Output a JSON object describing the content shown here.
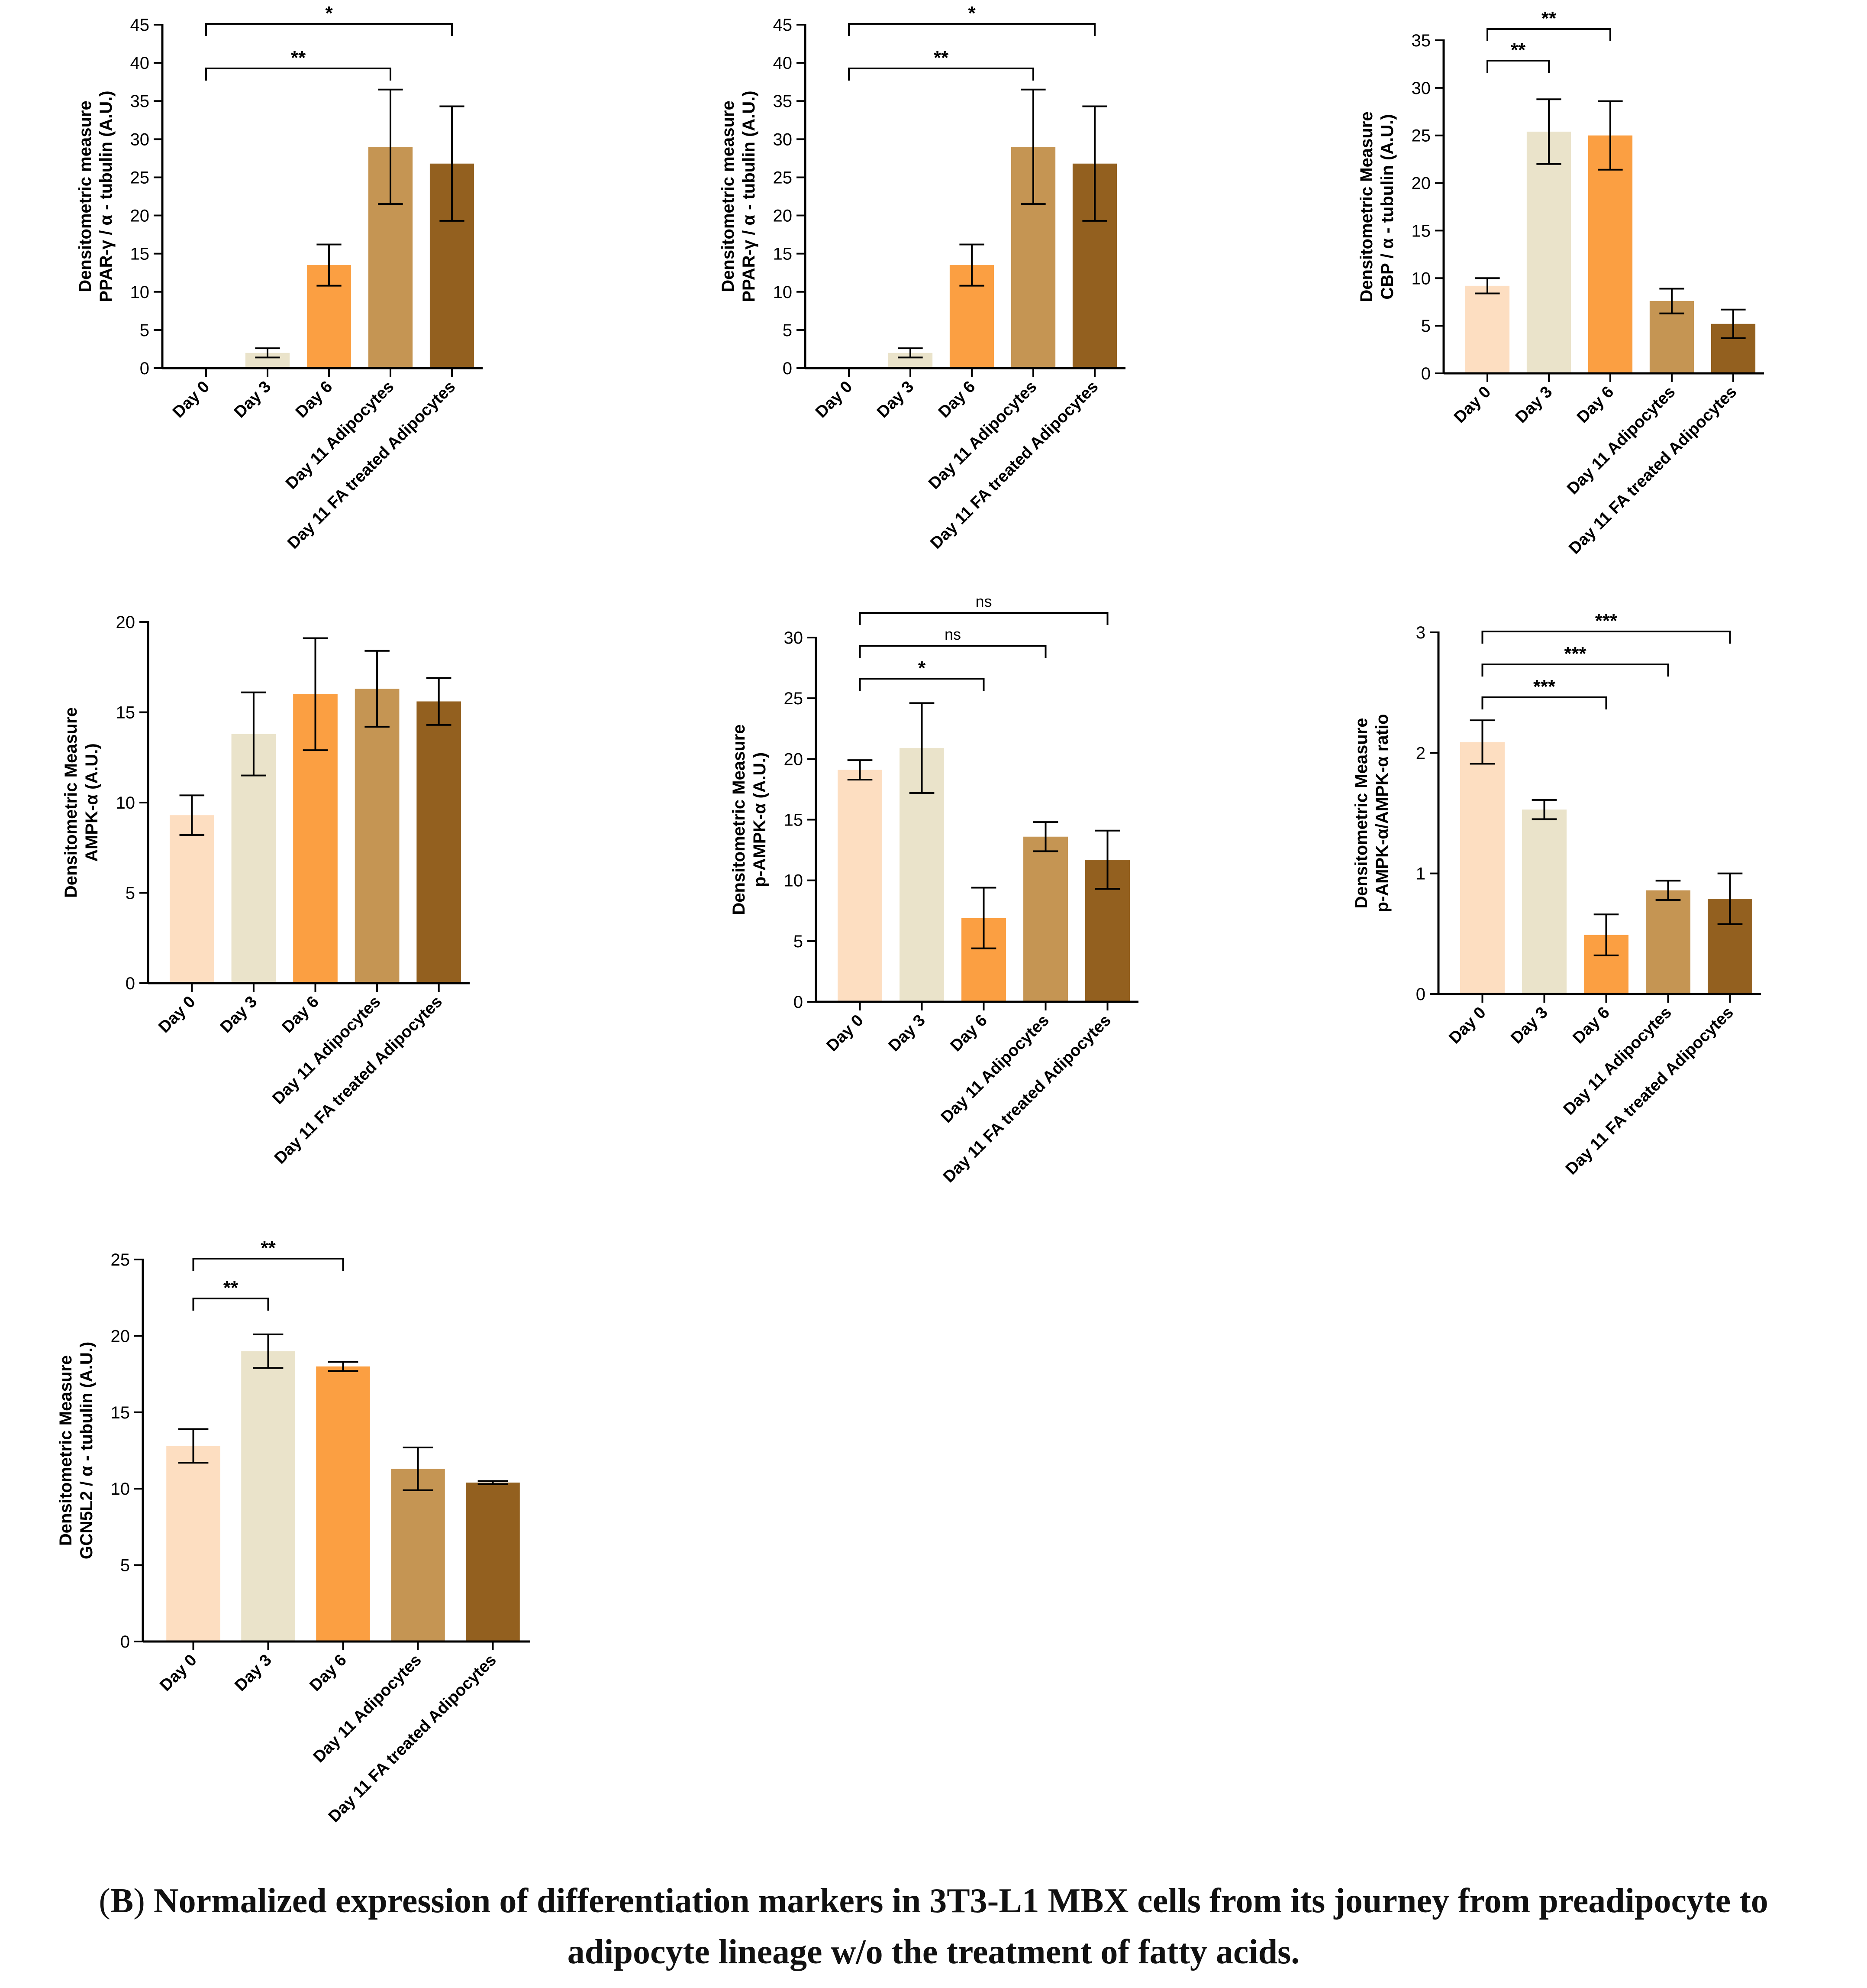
{
  "colors": {
    "bars": [
      "#FDDEC1",
      "#EAE3CA",
      "#FB9F42",
      "#C59553",
      "#93601F"
    ],
    "axis": "#000000"
  },
  "caption": {
    "paren_open": "(",
    "letter": "B",
    "paren_close": ")",
    "line1": " Normalized expression of differentiation markers in 3T3-L1 MBX cells from its journey from preadipocyte to",
    "line2": "adipocyte lineage w/o the treatment of fatty acids."
  },
  "chart_data": [
    {
      "type": "bar",
      "title": "",
      "categories": [
        "Day 0",
        "Day 3",
        "Day 6",
        "Day 11 Adipocytes",
        "Day 11 FA treated Adipocytes"
      ],
      "values": [
        0,
        2.0,
        13.5,
        29.0,
        26.8
      ],
      "errors": [
        0,
        0.6,
        2.7,
        7.5,
        7.5
      ],
      "ylabel_lines": [
        "Densitometric measure",
        "PPAR-γ / α - tubulin (A.U.)"
      ],
      "xlabel": "",
      "ylim": [
        0,
        45
      ],
      "yticks": [
        0,
        5,
        10,
        15,
        20,
        25,
        30,
        35,
        40,
        45
      ],
      "annotations": [
        {
          "from": 0,
          "to": 3,
          "label": "**"
        },
        {
          "from": 0,
          "to": 4,
          "label": "*"
        }
      ]
    },
    {
      "type": "bar",
      "title": "",
      "categories": [
        "Day 0",
        "Day 3",
        "Day 6",
        "Day 11 Adipocytes",
        "Day 11 FA treated Adipocytes"
      ],
      "values": [
        0,
        2.0,
        13.5,
        29.0,
        26.8
      ],
      "errors": [
        0,
        0.6,
        2.7,
        7.5,
        7.5
      ],
      "ylabel_lines": [
        "Densitometric measure",
        "PPAR-γ / α - tubulin (A.U.)"
      ],
      "xlabel": "",
      "ylim": [
        0,
        45
      ],
      "yticks": [
        0,
        5,
        10,
        15,
        20,
        25,
        30,
        35,
        40,
        45
      ],
      "annotations": [
        {
          "from": 0,
          "to": 3,
          "label": "**"
        },
        {
          "from": 0,
          "to": 4,
          "label": "*"
        }
      ]
    },
    {
      "type": "bar",
      "title": "",
      "categories": [
        "Day 0",
        "Day 3",
        "Day 6",
        "Day 11 Adipocytes",
        "Day 11 FA treated Adipocytes"
      ],
      "values": [
        9.2,
        25.4,
        25.0,
        7.6,
        5.2
      ],
      "errors": [
        0.8,
        3.4,
        3.6,
        1.3,
        1.5
      ],
      "ylabel_lines": [
        "Densitometric Measure",
        "CBP / α - tubulin (A.U.)"
      ],
      "xlabel": "",
      "ylim": [
        0,
        35
      ],
      "yticks": [
        0,
        5,
        10,
        15,
        20,
        25,
        30,
        35
      ],
      "annotations": [
        {
          "from": 0,
          "to": 1,
          "label": "**"
        },
        {
          "from": 0,
          "to": 2,
          "label": "**"
        }
      ]
    },
    {
      "type": "bar",
      "title": "",
      "categories": [
        "Day 0",
        "Day 3",
        "Day 6",
        "Day 11 Adipocytes",
        "Day 11 FA treated Adipocytes"
      ],
      "values": [
        9.3,
        13.8,
        16.0,
        16.3,
        15.6
      ],
      "errors": [
        1.1,
        2.3,
        3.1,
        2.1,
        1.3
      ],
      "ylabel_lines": [
        "Densitometric Measure",
        "AMPK-α (A.U.)"
      ],
      "xlabel": "",
      "ylim": [
        0,
        20
      ],
      "yticks": [
        0,
        5,
        10,
        15,
        20
      ],
      "annotations": []
    },
    {
      "type": "bar",
      "title": "",
      "categories": [
        "Day 0",
        "Day 3",
        "Day 6",
        "Day 11 Adipocytes",
        "Day 11 FA treated Adipocytes"
      ],
      "values": [
        19.1,
        20.9,
        6.9,
        13.6,
        11.7
      ],
      "errors": [
        0.8,
        3.7,
        2.5,
        1.2,
        2.4
      ],
      "ylabel_lines": [
        "Densitometric Measure",
        "p-AMPK-α (A.U.)"
      ],
      "xlabel": "",
      "ylim": [
        0,
        30
      ],
      "yticks": [
        0,
        5,
        10,
        15,
        20,
        25,
        30
      ],
      "annotations": [
        {
          "from": 0,
          "to": 2,
          "label": "*"
        },
        {
          "from": 0,
          "to": 3,
          "label": "ns"
        },
        {
          "from": 0,
          "to": 4,
          "label": "ns"
        }
      ]
    },
    {
      "type": "bar",
      "title": "",
      "categories": [
        "Day 0",
        "Day 3",
        "Day 6",
        "Day 11 Adipocytes",
        "Day 11 FA treated Adipocytes"
      ],
      "values": [
        2.09,
        1.53,
        0.49,
        0.86,
        0.79
      ],
      "errors": [
        0.18,
        0.08,
        0.17,
        0.08,
        0.21
      ],
      "ylabel_lines": [
        "Densitometric Measure",
        "p-AMPK-α/AMPK-α ratio"
      ],
      "xlabel": "",
      "ylim": [
        0,
        3
      ],
      "yticks": [
        0,
        1,
        2,
        3
      ],
      "annotations": [
        {
          "from": 0,
          "to": 2,
          "label": "***"
        },
        {
          "from": 0,
          "to": 3,
          "label": "***"
        },
        {
          "from": 0,
          "to": 4,
          "label": "***"
        }
      ]
    },
    {
      "type": "bar",
      "title": "",
      "categories": [
        "Day 0",
        "Day 3",
        "Day 6",
        "Day 11 Adipocytes",
        "Day 11 FA treated Adipocytes"
      ],
      "values": [
        12.8,
        19.0,
        18.0,
        11.3,
        10.4
      ],
      "errors": [
        1.1,
        1.1,
        0.3,
        1.4,
        0.1
      ],
      "ylabel_lines": [
        "Densitometric Measure",
        "GCN5L2 / α - tubulin (A.U.)"
      ],
      "xlabel": "",
      "ylim": [
        0,
        25
      ],
      "yticks": [
        0,
        5,
        10,
        15,
        20,
        25
      ],
      "annotations": [
        {
          "from": 0,
          "to": 1,
          "label": "**"
        },
        {
          "from": 0,
          "to": 2,
          "label": "**"
        }
      ]
    }
  ]
}
